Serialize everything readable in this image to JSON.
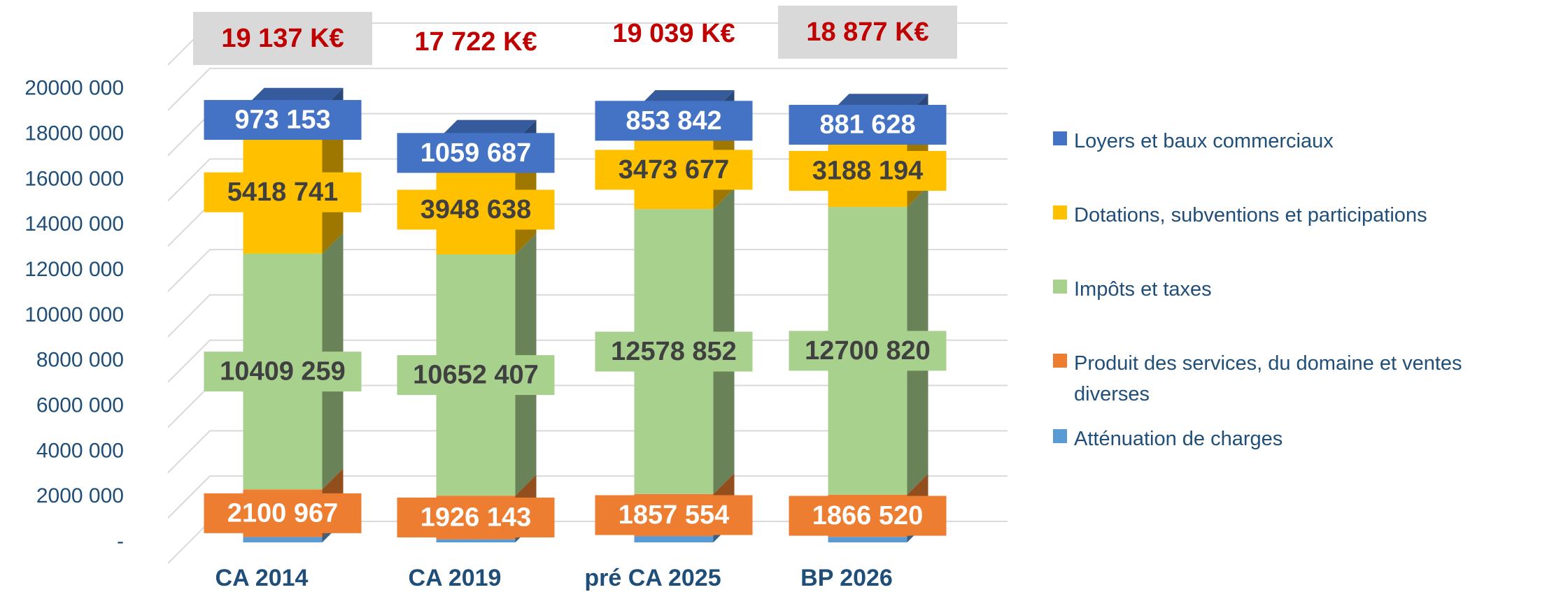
{
  "chart_data": {
    "type": "bar3d_stacked",
    "categories": [
      "CA 2014",
      "CA 2019",
      "pré CA 2025",
      "BP 2026"
    ],
    "total_labels": [
      "19 137 K€",
      "17 722 K€",
      "19 039 K€",
      "18 877 K€"
    ],
    "total_boxed": [
      true,
      false,
      false,
      true
    ],
    "series": [
      {
        "name": "Atténuation de charges",
        "color": "#5b9bd5",
        "values": [
          235000,
          135000,
          275000,
          240000
        ]
      },
      {
        "name": "Produit des services, du domaine et ventes diverses",
        "color": "#ed7d31",
        "values": [
          2100967,
          1926143,
          1857554,
          1866520
        ],
        "value_labels": [
          "2100 967",
          "1926 143",
          "1857 554",
          "1866 520"
        ]
      },
      {
        "name": "Impôts et taxes",
        "color": "#a9d18e",
        "values": [
          10409259,
          10652407,
          12578852,
          12700820
        ],
        "value_labels": [
          "10409 259",
          "10652 407",
          "12578 852",
          "12700 820"
        ]
      },
      {
        "name": "Dotations, subventions et participations",
        "color": "#ffc000",
        "values": [
          5418741,
          3948638,
          3473677,
          3188194
        ],
        "value_labels": [
          "5418 741",
          "3948 638",
          "3473 677",
          "3188 194"
        ]
      },
      {
        "name": "Loyers et baux commerciaux",
        "color": "#4472c4",
        "values": [
          973153,
          1059687,
          853842,
          881628
        ],
        "value_labels": [
          "973 153",
          "1059 687",
          "853 842",
          "881 628"
        ]
      }
    ],
    "ylim": [
      0,
      22000000
    ],
    "yticks": [
      {
        "value": 0,
        "label": "-"
      },
      {
        "value": 2000000,
        "label": "2000 000"
      },
      {
        "value": 4000000,
        "label": "4000 000"
      },
      {
        "value": 6000000,
        "label": "6000 000"
      },
      {
        "value": 8000000,
        "label": "8000 000"
      },
      {
        "value": 10000000,
        "label": "10000 000"
      },
      {
        "value": 12000000,
        "label": "12000 000"
      },
      {
        "value": 14000000,
        "label": "14000 000"
      },
      {
        "value": 16000000,
        "label": "16000 000"
      },
      {
        "value": 18000000,
        "label": "18000 000"
      },
      {
        "value": 20000000,
        "label": "20000 000"
      }
    ],
    "grid": true
  }
}
